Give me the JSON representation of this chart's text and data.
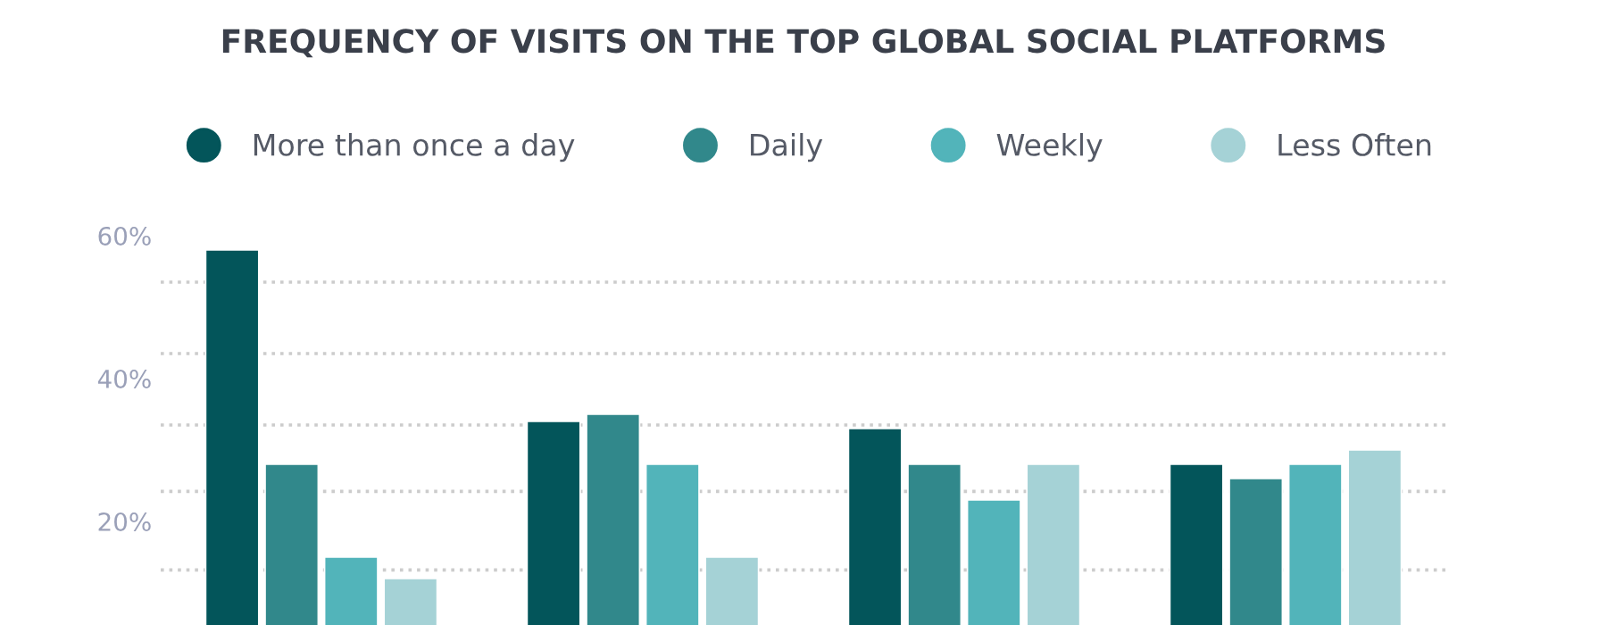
{
  "chart_data": {
    "type": "bar",
    "title": "FREQUENCY OF VISITS ON THE TOP GLOBAL SOCIAL PLATFORMS",
    "categories": [
      null,
      null,
      null,
      null
    ],
    "series": [
      {
        "name": "More than once a day",
        "color": "#03555a",
        "values": [
          58,
          34,
          33,
          28
        ]
      },
      {
        "name": "Daily",
        "color": "#31888b",
        "values": [
          28,
          35,
          28,
          26
        ]
      },
      {
        "name": "Weekly",
        "color": "#52b4ba",
        "values": [
          15,
          28,
          23,
          28
        ]
      },
      {
        "name": "Less Often",
        "color": "#a5d2d6",
        "values": [
          12,
          15,
          28,
          30
        ]
      }
    ],
    "ylim": [
      0,
      60
    ],
    "yticks": [
      {
        "value": 20,
        "label": "20%"
      },
      {
        "value": 40,
        "label": "40%"
      },
      {
        "value": 60,
        "label": "60%"
      }
    ],
    "ref_lines": [
      {
        "axis": "y",
        "value": 53.5,
        "color": "#cccccc",
        "line_style": "dotted"
      },
      {
        "axis": "y",
        "value": 43.5,
        "color": "#cccccc",
        "line_style": "dotted"
      },
      {
        "axis": "y",
        "value": 33.5,
        "color": "#cccccc",
        "line_style": "dotted"
      },
      {
        "axis": "y",
        "value": 24.2,
        "color": "#cccccc",
        "line_style": "dotted"
      },
      {
        "axis": "y",
        "value": 13.2,
        "color": "#cccccc",
        "line_style": "dotted"
      }
    ],
    "legend": "top",
    "marker": "circle",
    "grid": false
  }
}
